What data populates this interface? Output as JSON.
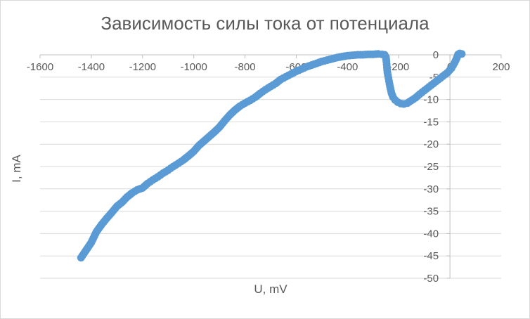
{
  "chart_data": {
    "type": "scatter",
    "title": "Зависимость силы тока от потенциала",
    "xlabel": "U, mV",
    "ylabel": "I, mA",
    "xlim": [
      -1600,
      200
    ],
    "ylim": [
      -50,
      0
    ],
    "x_ticks": [
      -1600,
      -1400,
      -1200,
      -1000,
      -800,
      -600,
      -400,
      -200,
      0,
      200
    ],
    "y_ticks": [
      0,
      -5,
      -10,
      -15,
      -20,
      -25,
      -30,
      -35,
      -40,
      -45,
      -50
    ],
    "x_tick_labels": [
      "-1600",
      "-1400",
      "-1200",
      "-1000",
      "-800",
      "-600",
      "-400",
      "-200",
      "0",
      "200"
    ],
    "y_tick_labels": [
      "0",
      "-5",
      "-10",
      "-15",
      "-20",
      "-25",
      "-30",
      "-35",
      "-40",
      "-45",
      "-50"
    ],
    "grid": "horizontal",
    "marker_color": "#5b9bd5",
    "series": [
      {
        "points": [
          [
            -1440,
            -45.4
          ],
          [
            -1420,
            -43.7
          ],
          [
            -1400,
            -42.0
          ],
          [
            -1380,
            -39.6
          ],
          [
            -1360,
            -38.0
          ],
          [
            -1340,
            -36.6
          ],
          [
            -1320,
            -35.3
          ],
          [
            -1300,
            -33.9
          ],
          [
            -1280,
            -33.0
          ],
          [
            -1260,
            -31.8
          ],
          [
            -1240,
            -30.9
          ],
          [
            -1220,
            -30.2
          ],
          [
            -1200,
            -29.8
          ],
          [
            -1180,
            -28.8
          ],
          [
            -1160,
            -28.0
          ],
          [
            -1140,
            -27.3
          ],
          [
            -1120,
            -26.5
          ],
          [
            -1100,
            -25.8
          ],
          [
            -1080,
            -25.0
          ],
          [
            -1060,
            -24.3
          ],
          [
            -1040,
            -23.5
          ],
          [
            -1020,
            -22.6
          ],
          [
            -1000,
            -21.6
          ],
          [
            -980,
            -20.3
          ],
          [
            -960,
            -19.3
          ],
          [
            -940,
            -18.3
          ],
          [
            -920,
            -17.3
          ],
          [
            -900,
            -16.2
          ],
          [
            -880,
            -14.8
          ],
          [
            -860,
            -13.5
          ],
          [
            -840,
            -12.4
          ],
          [
            -820,
            -11.5
          ],
          [
            -800,
            -10.8
          ],
          [
            -780,
            -10.2
          ],
          [
            -760,
            -9.5
          ],
          [
            -740,
            -8.6
          ],
          [
            -720,
            -7.8
          ],
          [
            -700,
            -7.1
          ],
          [
            -680,
            -6.4
          ],
          [
            -660,
            -5.5
          ],
          [
            -640,
            -4.9
          ],
          [
            -620,
            -4.3
          ],
          [
            -600,
            -3.7
          ],
          [
            -580,
            -3.2
          ],
          [
            -560,
            -2.7
          ],
          [
            -540,
            -2.3
          ],
          [
            -520,
            -1.9
          ],
          [
            -500,
            -1.5
          ],
          [
            -480,
            -1.2
          ],
          [
            -460,
            -0.9
          ],
          [
            -440,
            -0.6
          ],
          [
            -420,
            -0.4
          ],
          [
            -400,
            -0.2
          ],
          [
            -380,
            -0.1
          ],
          [
            -360,
            0.0
          ],
          [
            -340,
            0.0
          ],
          [
            -320,
            0.1
          ],
          [
            -300,
            0.1
          ],
          [
            -280,
            0.2
          ],
          [
            -265,
            0.1
          ],
          [
            -255,
            0.0
          ],
          [
            -250,
            -0.5
          ],
          [
            -248,
            -1.5
          ],
          [
            -246,
            -2.8
          ],
          [
            -244,
            -4.0
          ],
          [
            -240,
            -5.2
          ],
          [
            -236,
            -6.5
          ],
          [
            -232,
            -7.6
          ],
          [
            -228,
            -8.6
          ],
          [
            -222,
            -9.5
          ],
          [
            -214,
            -10.1
          ],
          [
            -204,
            -10.6
          ],
          [
            -192,
            -10.9
          ],
          [
            -180,
            -11.0
          ],
          [
            -166,
            -10.8
          ],
          [
            -150,
            -10.2
          ],
          [
            -134,
            -9.6
          ],
          [
            -118,
            -8.8
          ],
          [
            -100,
            -8.0
          ],
          [
            -82,
            -7.2
          ],
          [
            -64,
            -6.4
          ],
          [
            -46,
            -5.6
          ],
          [
            -28,
            -4.8
          ],
          [
            -10,
            -4.0
          ],
          [
            6,
            -3.0
          ],
          [
            18,
            -1.8
          ],
          [
            26,
            -0.8
          ],
          [
            32,
            0.1
          ],
          [
            38,
            0.3
          ],
          [
            46,
            0.2
          ]
        ]
      }
    ]
  }
}
